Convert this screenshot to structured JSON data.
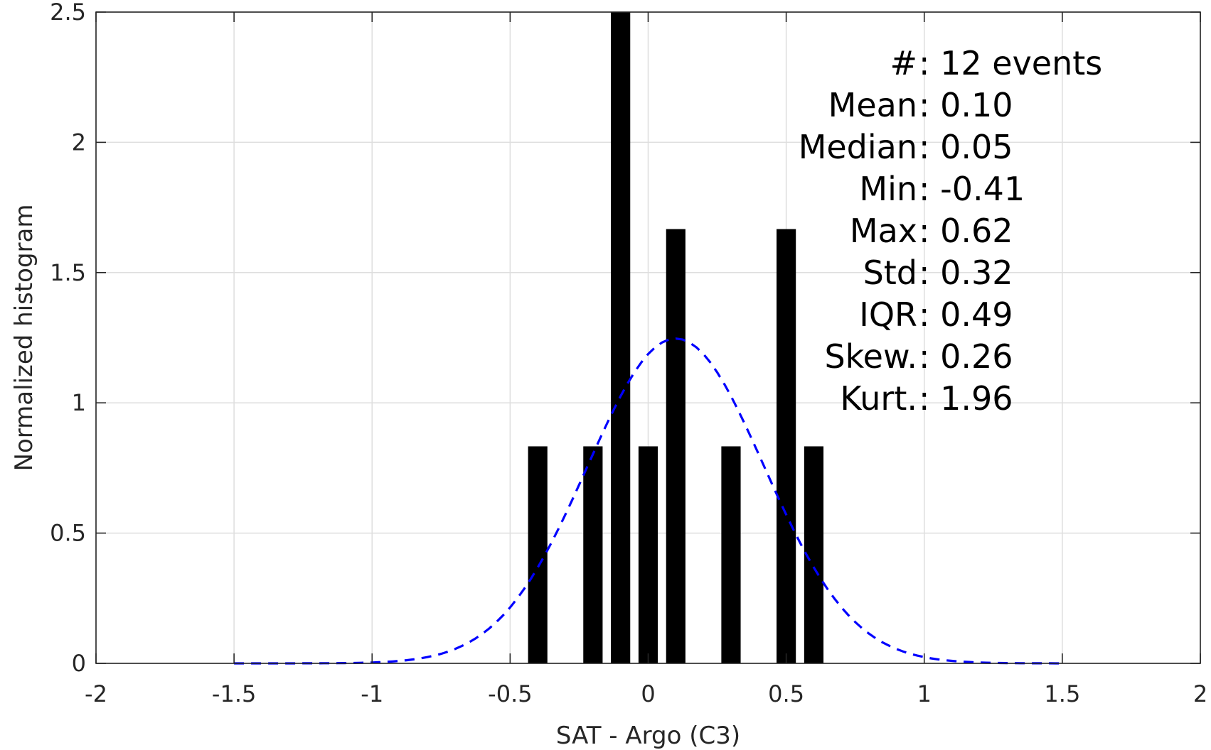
{
  "chart_data": {
    "type": "bar",
    "xlabel": "SAT - Argo (C3)",
    "ylabel": "Normalized histogram",
    "xlim": [
      -2,
      2
    ],
    "ylim": [
      0,
      2.5
    ],
    "xticks": [
      -2,
      -1.5,
      -1,
      -0.5,
      0,
      0.5,
      1,
      1.5,
      2
    ],
    "xtick_labels": [
      "-2",
      "-1.5",
      "-1",
      "-0.5",
      "0",
      "0.5",
      "1",
      "1.5",
      "2"
    ],
    "yticks": [
      0,
      0.5,
      1,
      1.5,
      2,
      2.5
    ],
    "ytick_labels": [
      "0",
      "0.5",
      "1",
      "1.5",
      "2",
      "2.5"
    ],
    "grid": true,
    "bar_width": 0.07,
    "bars": [
      {
        "x": -0.4,
        "value": 0.833
      },
      {
        "x": -0.2,
        "value": 0.833
      },
      {
        "x": -0.1,
        "value": 2.5
      },
      {
        "x": 0.0,
        "value": 0.833
      },
      {
        "x": 0.1,
        "value": 1.667
      },
      {
        "x": 0.3,
        "value": 0.833
      },
      {
        "x": 0.5,
        "value": 1.667
      },
      {
        "x": 0.6,
        "value": 0.833
      }
    ],
    "bar_color": "#000000",
    "fit_curve": {
      "style": "dashed",
      "color": "#0000ff",
      "mean": 0.1,
      "std": 0.32,
      "x_range": [
        -1.5,
        1.5
      ]
    },
    "annotations": [
      {
        "label": "#  ",
        "value": ": 12 events"
      },
      {
        "label": "Mean ",
        "value": ": 0.10"
      },
      {
        "label": "Median ",
        "value": ": 0.05"
      },
      {
        "label": "Min ",
        "value": ": -0.41"
      },
      {
        "label": "Max ",
        "value": ": 0.62"
      },
      {
        "label": "Std ",
        "value": ": 0.32"
      },
      {
        "label": "IQR ",
        "value": ": 0.49"
      },
      {
        "label": "Skew. ",
        "value": ": 0.26"
      },
      {
        "label": "Kurt. ",
        "value": ": 1.96"
      }
    ]
  }
}
